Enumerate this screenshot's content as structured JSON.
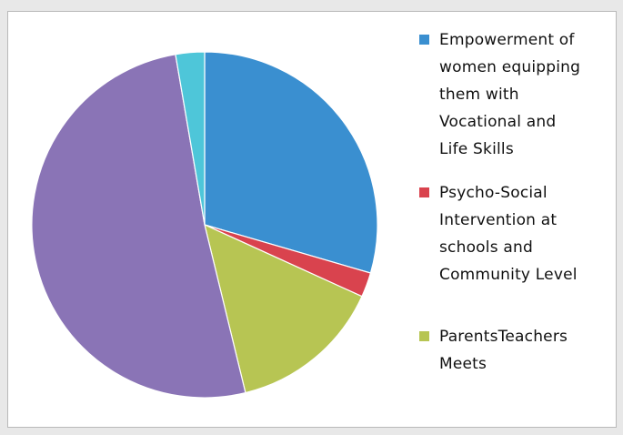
{
  "chart_data": {
    "type": "pie",
    "slices": [
      {
        "label": "Empowerment of women equipping them with Vocational and Life Skills",
        "value": 29.5,
        "color": "#3a8fd0"
      },
      {
        "label": "Psycho-Social Intervention at schools and Community Level",
        "value": 2.3,
        "color": "#d9434e"
      },
      {
        "label": "ParentsTeachers Meets",
        "value": 14.4,
        "color": "#b7c553"
      },
      {
        "label": "",
        "value": 51.1,
        "color": "#8a74b6"
      },
      {
        "label": "",
        "value": 2.7,
        "color": "#4ec6d9"
      }
    ],
    "legend": {
      "position": "right",
      "items": [
        {
          "lines": [
            "Empowerment of",
            "women equipping",
            "them with",
            "Vocational and",
            "Life Skills"
          ],
          "color": "#3a8fd0"
        },
        {
          "lines": [
            "Psycho-Social",
            "Intervention at",
            "schools and",
            "Community Level"
          ],
          "color": "#d9434e"
        },
        {
          "lines": [
            "ParentsTeachers",
            "Meets"
          ],
          "color": "#b7c553"
        }
      ]
    }
  }
}
